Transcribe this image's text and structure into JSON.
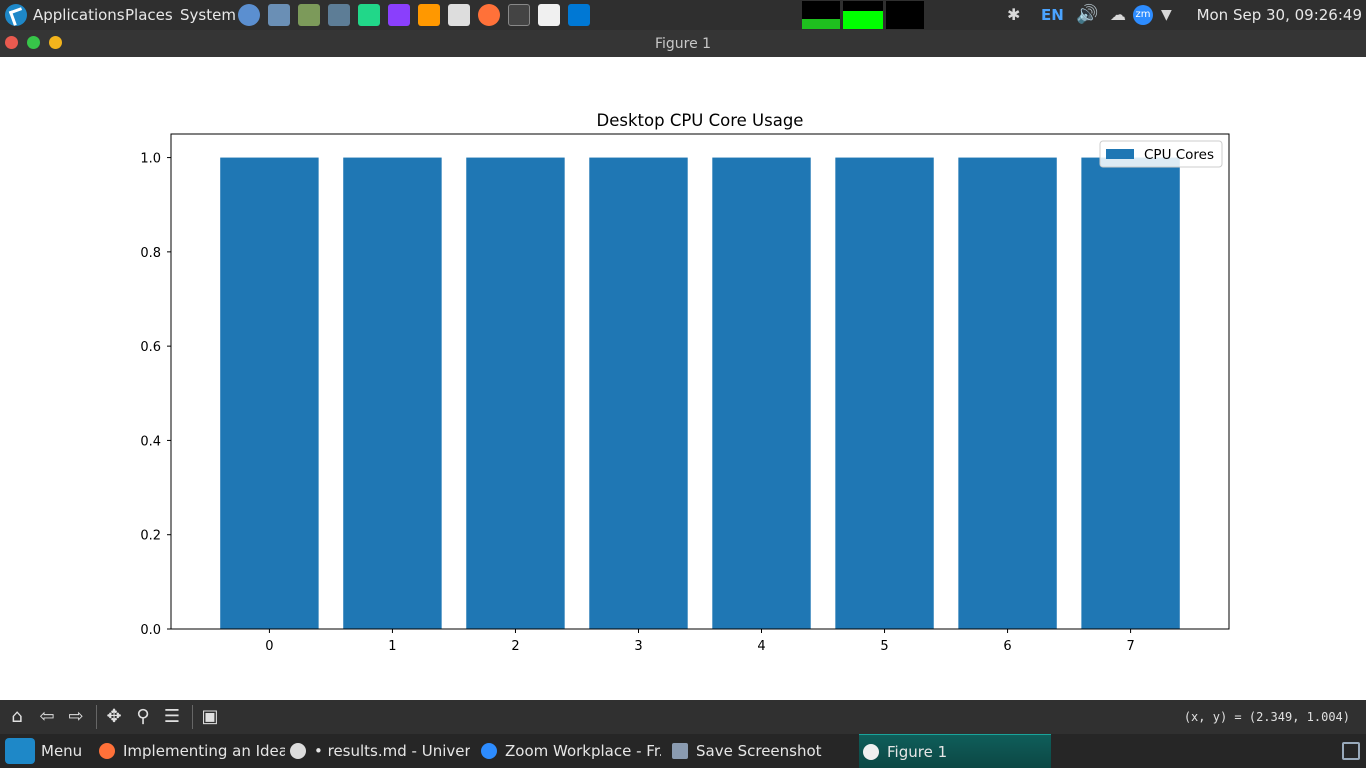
{
  "top_panel": {
    "menus": [
      "Applications",
      "Places",
      "System"
    ],
    "input_language": "EN",
    "clock": "Mon Sep 30, 09:26:49",
    "launchers": [
      "chromium-icon",
      "file-manager-icon",
      "settings-icon",
      "screenshot-icon",
      "pycharm-icon",
      "intellij-icon",
      "sublime-icon",
      "mask-icon",
      "firefox-icon",
      "terminal-icon",
      "text-editor-icon",
      "vscode-icon"
    ]
  },
  "window": {
    "title": "Figure 1"
  },
  "chart_data": {
    "type": "bar",
    "title": "Desktop CPU Core Usage",
    "categories": [
      "0",
      "1",
      "2",
      "3",
      "4",
      "5",
      "6",
      "7"
    ],
    "series": [
      {
        "name": "CPU Cores",
        "values": [
          1.0,
          1.0,
          1.0,
          1.0,
          1.0,
          1.0,
          1.0,
          1.0
        ],
        "color": "#1f77b4"
      }
    ],
    "yticks": [
      "0.0",
      "0.2",
      "0.4",
      "0.6",
      "0.8",
      "1.0"
    ],
    "ylim": [
      0,
      1.05
    ],
    "legend": "top-right",
    "grid": false,
    "xlabel": "",
    "ylabel": ""
  },
  "toolbar": {
    "coords": "(x, y) = (2.349, 1.004)"
  },
  "taskbar": {
    "menu_label": "Menu",
    "tasks": [
      "Implementing an Idea ...",
      "• results.md - Univer...",
      "Zoom Workplace - Fr...",
      "Save Screenshot",
      "Figure 1"
    ]
  }
}
